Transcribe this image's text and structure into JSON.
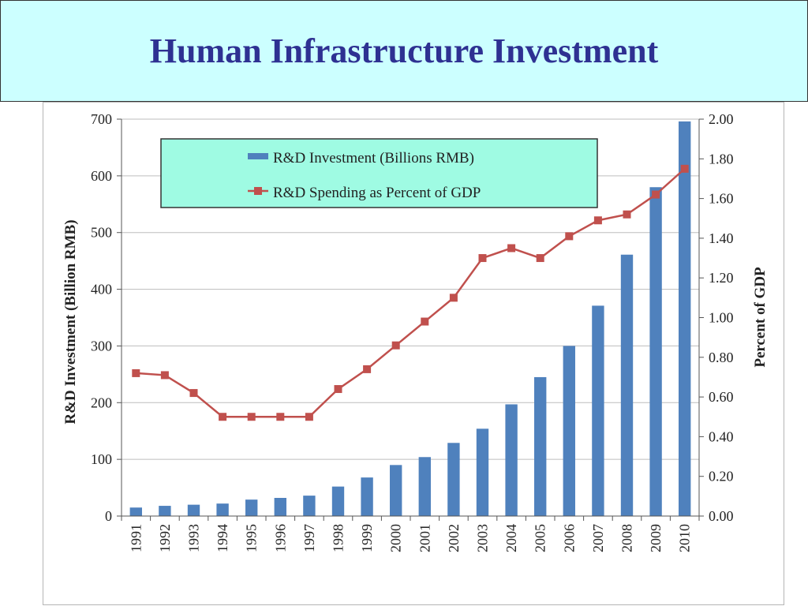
{
  "page": {
    "title": "Human Infrastructure Investment"
  },
  "colors": {
    "title_text": "#2e3192",
    "title_bg": "#ccffff",
    "legend_bg": "#9ffbe3",
    "bar": "#4f81bd",
    "line": "#c0504d"
  },
  "chart_data": {
    "type": "bar",
    "title": "",
    "categories": [
      "1991",
      "1992",
      "1993",
      "1994",
      "1995",
      "1996",
      "1997",
      "1998",
      "1999",
      "2000",
      "2001",
      "2002",
      "2003",
      "2004",
      "2005",
      "2006",
      "2007",
      "2008",
      "2009",
      "2010"
    ],
    "series": [
      {
        "name": "R&D Investment (Billions RMB)",
        "type": "bar",
        "axis": "left",
        "values": [
          15,
          18,
          20,
          22,
          29,
          32,
          36,
          52,
          68,
          90,
          104,
          129,
          154,
          197,
          245,
          300,
          371,
          461,
          580,
          696
        ]
      },
      {
        "name": "R&D Spending as Percent of GDP",
        "type": "line",
        "axis": "right",
        "marker": "square",
        "values": [
          0.72,
          0.71,
          0.62,
          0.5,
          0.5,
          0.5,
          0.5,
          0.64,
          0.74,
          0.86,
          0.98,
          1.1,
          1.3,
          1.35,
          1.3,
          1.41,
          1.49,
          1.52,
          1.62,
          1.75
        ]
      }
    ],
    "ylabel": "R&D Investment (Billion RMB)",
    "ylim": [
      0,
      700
    ],
    "yticks": [
      "0",
      "100",
      "200",
      "300",
      "400",
      "500",
      "600",
      "700"
    ],
    "y2label": "Percent of GDP",
    "y2lim": [
      0,
      2.0
    ],
    "y2ticks": [
      "0.00",
      "0.20",
      "0.40",
      "0.60",
      "0.80",
      "1.00",
      "1.20",
      "1.40",
      "1.60",
      "1.80",
      "2.00"
    ],
    "grid": true,
    "legend_position": "top-left"
  }
}
